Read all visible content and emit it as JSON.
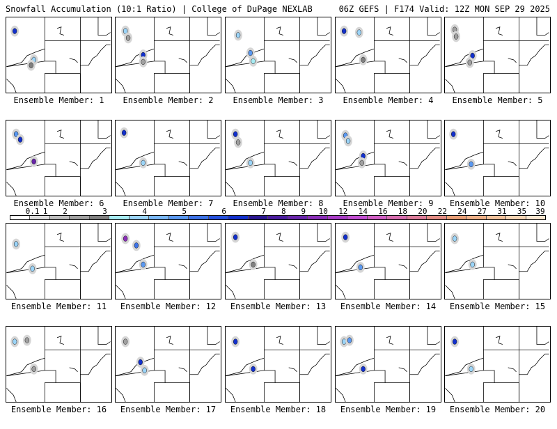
{
  "header": {
    "left": "Snowfall Accumulation (10:1 Ratio) | College of DuPage NEXLAB",
    "right": "06Z GEFS | F174 Valid: 12Z MON SEP 29 2025"
  },
  "colorbar": {
    "labels": [
      "0.1",
      "1",
      "2",
      "3",
      "4",
      "5",
      "6",
      "7",
      "8",
      "9",
      "10",
      "12",
      "14",
      "16",
      "18",
      "20",
      "22",
      "24",
      "27",
      "31",
      "35",
      "39"
    ],
    "colors": [
      "#ffffff",
      "#dcdcdc",
      "#bdbdbd",
      "#a0a0a0",
      "#808080",
      "#a7ecf4",
      "#9bd4f8",
      "#7ab8f8",
      "#5a98f0",
      "#3d72e6",
      "#2450dc",
      "#1230cc",
      "#2a1690",
      "#4a1c9e",
      "#6824aa",
      "#8a2eb8",
      "#a83cc6",
      "#c24ed2",
      "#d05ec4",
      "#d66cae",
      "#dc7c9a",
      "#e38c84",
      "#e89e76",
      "#eeb088",
      "#f2c29c",
      "#f6d4b4",
      "#fae6d0"
    ]
  },
  "members": [
    {
      "label": "Ensemble Member: 1",
      "blobs": [
        {
          "x": 12,
          "y": 20,
          "c": "#1230cc"
        },
        {
          "x": 40,
          "y": 62,
          "c": "#9bd4f8"
        },
        {
          "x": 36,
          "y": 70,
          "c": "#808080"
        }
      ]
    },
    {
      "label": "Ensemble Member: 2",
      "blobs": [
        {
          "x": 14,
          "y": 20,
          "c": "#9bd4f8"
        },
        {
          "x": 18,
          "y": 30,
          "c": "#a0a0a0"
        },
        {
          "x": 40,
          "y": 55,
          "c": "#1230cc"
        },
        {
          "x": 40,
          "y": 65,
          "c": "#a0a0a0"
        }
      ]
    },
    {
      "label": "Ensemble Member: 3",
      "blobs": [
        {
          "x": 18,
          "y": 26,
          "c": "#9bd4f8"
        },
        {
          "x": 36,
          "y": 52,
          "c": "#5a98f0"
        },
        {
          "x": 40,
          "y": 64,
          "c": "#a7ecf4"
        }
      ]
    },
    {
      "label": "Ensemble Member: 4",
      "blobs": [
        {
          "x": 12,
          "y": 20,
          "c": "#1230cc"
        },
        {
          "x": 34,
          "y": 22,
          "c": "#9bd4f8"
        },
        {
          "x": 40,
          "y": 62,
          "c": "#808080"
        }
      ]
    },
    {
      "label": "Ensemble Member: 5",
      "blobs": [
        {
          "x": 14,
          "y": 18,
          "c": "#a0a0a0"
        },
        {
          "x": 16,
          "y": 28,
          "c": "#a0a0a0"
        },
        {
          "x": 40,
          "y": 56,
          "c": "#1230cc"
        },
        {
          "x": 36,
          "y": 66,
          "c": "#a0a0a0"
        }
      ]
    },
    {
      "label": "Ensemble Member: 6",
      "blobs": [
        {
          "x": 14,
          "y": 20,
          "c": "#5a98f0"
        },
        {
          "x": 20,
          "y": 28,
          "c": "#1230cc"
        },
        {
          "x": 40,
          "y": 60,
          "c": "#6824aa"
        }
      ]
    },
    {
      "label": "Ensemble Member: 7",
      "blobs": [
        {
          "x": 12,
          "y": 18,
          "c": "#1230cc"
        },
        {
          "x": 40,
          "y": 62,
          "c": "#9bd4f8"
        }
      ]
    },
    {
      "label": "Ensemble Member: 8",
      "blobs": [
        {
          "x": 14,
          "y": 20,
          "c": "#1230cc"
        },
        {
          "x": 18,
          "y": 32,
          "c": "#a0a0a0"
        },
        {
          "x": 36,
          "y": 62,
          "c": "#9bd4f8"
        }
      ]
    },
    {
      "label": "Ensemble Member: 9",
      "blobs": [
        {
          "x": 14,
          "y": 22,
          "c": "#5a98f0"
        },
        {
          "x": 18,
          "y": 30,
          "c": "#9bd4f8"
        },
        {
          "x": 40,
          "y": 52,
          "c": "#1230cc"
        },
        {
          "x": 38,
          "y": 62,
          "c": "#a0a0a0"
        }
      ]
    },
    {
      "label": "Ensemble Member: 10",
      "blobs": [
        {
          "x": 12,
          "y": 20,
          "c": "#1230cc"
        },
        {
          "x": 38,
          "y": 64,
          "c": "#5a98f0"
        }
      ]
    },
    {
      "label": "Ensemble Member: 11",
      "blobs": [
        {
          "x": 14,
          "y": 30,
          "c": "#9bd4f8"
        },
        {
          "x": 38,
          "y": 66,
          "c": "#9bd4f8"
        }
      ]
    },
    {
      "label": "Ensemble Member: 12",
      "blobs": [
        {
          "x": 14,
          "y": 22,
          "c": "#8a2eb8"
        },
        {
          "x": 30,
          "y": 32,
          "c": "#3d72e6"
        },
        {
          "x": 40,
          "y": 60,
          "c": "#5a98f0"
        }
      ]
    },
    {
      "label": "Ensemble Member: 13",
      "blobs": [
        {
          "x": 14,
          "y": 20,
          "c": "#1230cc"
        },
        {
          "x": 40,
          "y": 60,
          "c": "#808080"
        }
      ]
    },
    {
      "label": "Ensemble Member: 14",
      "blobs": [
        {
          "x": 14,
          "y": 20,
          "c": "#1230cc"
        },
        {
          "x": 36,
          "y": 64,
          "c": "#5a98f0"
        }
      ]
    },
    {
      "label": "Ensemble Member: 15",
      "blobs": [
        {
          "x": 14,
          "y": 22,
          "c": "#9bd4f8"
        },
        {
          "x": 40,
          "y": 60,
          "c": "#9bd4f8"
        }
      ]
    },
    {
      "label": "Ensemble Member: 16",
      "blobs": [
        {
          "x": 12,
          "y": 22,
          "c": "#9bd4f8"
        },
        {
          "x": 30,
          "y": 20,
          "c": "#a0a0a0"
        },
        {
          "x": 40,
          "y": 62,
          "c": "#a0a0a0"
        }
      ]
    },
    {
      "label": "Ensemble Member: 17",
      "blobs": [
        {
          "x": 14,
          "y": 22,
          "c": "#a0a0a0"
        },
        {
          "x": 36,
          "y": 52,
          "c": "#1230cc"
        },
        {
          "x": 42,
          "y": 64,
          "c": "#9bd4f8"
        }
      ]
    },
    {
      "label": "Ensemble Member: 18",
      "blobs": [
        {
          "x": 14,
          "y": 22,
          "c": "#1230cc"
        },
        {
          "x": 40,
          "y": 62,
          "c": "#1230cc"
        }
      ]
    },
    {
      "label": "Ensemble Member: 19",
      "blobs": [
        {
          "x": 12,
          "y": 22,
          "c": "#9bd4f8"
        },
        {
          "x": 20,
          "y": 20,
          "c": "#5a98f0"
        },
        {
          "x": 40,
          "y": 62,
          "c": "#1230cc"
        }
      ]
    },
    {
      "label": "Ensemble Member: 20",
      "blobs": [
        {
          "x": 14,
          "y": 22,
          "c": "#1230cc"
        },
        {
          "x": 38,
          "y": 62,
          "c": "#9bd4f8"
        }
      ]
    }
  ]
}
